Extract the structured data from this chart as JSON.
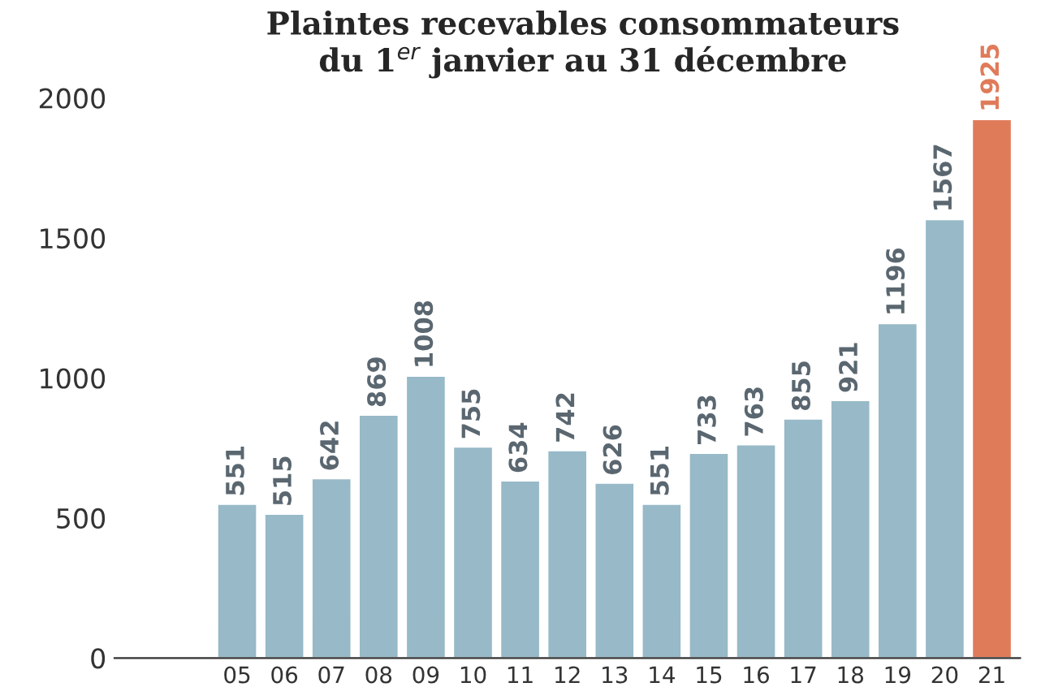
{
  "chart_data": {
    "type": "bar",
    "title": "Plaintes recevables consommateurs\ndu 1$^{er}$ janvier au 31 décembre",
    "categories": [
      "05",
      "06",
      "07",
      "08",
      "09",
      "10",
      "11",
      "12",
      "13",
      "14",
      "15",
      "16",
      "17",
      "18",
      "19",
      "20",
      "21"
    ],
    "values": [
      551,
      515,
      642,
      869,
      1008,
      755,
      634,
      742,
      626,
      551,
      733,
      763,
      855,
      921,
      1196,
      1567,
      1925
    ],
    "colors": [
      "#97b9c8",
      "#97b9c8",
      "#97b9c8",
      "#97b9c8",
      "#97b9c8",
      "#97b9c8",
      "#97b9c8",
      "#97b9c8",
      "#97b9c8",
      "#97b9c8",
      "#97b9c8",
      "#97b9c8",
      "#97b9c8",
      "#97b9c8",
      "#97b9c8",
      "#97b9c8",
      "#e07b5a"
    ],
    "ylim": [
      0,
      2000
    ],
    "yticks": [
      0,
      500,
      1000,
      1500,
      2000
    ],
    "grid": false,
    "data_labels": true
  }
}
